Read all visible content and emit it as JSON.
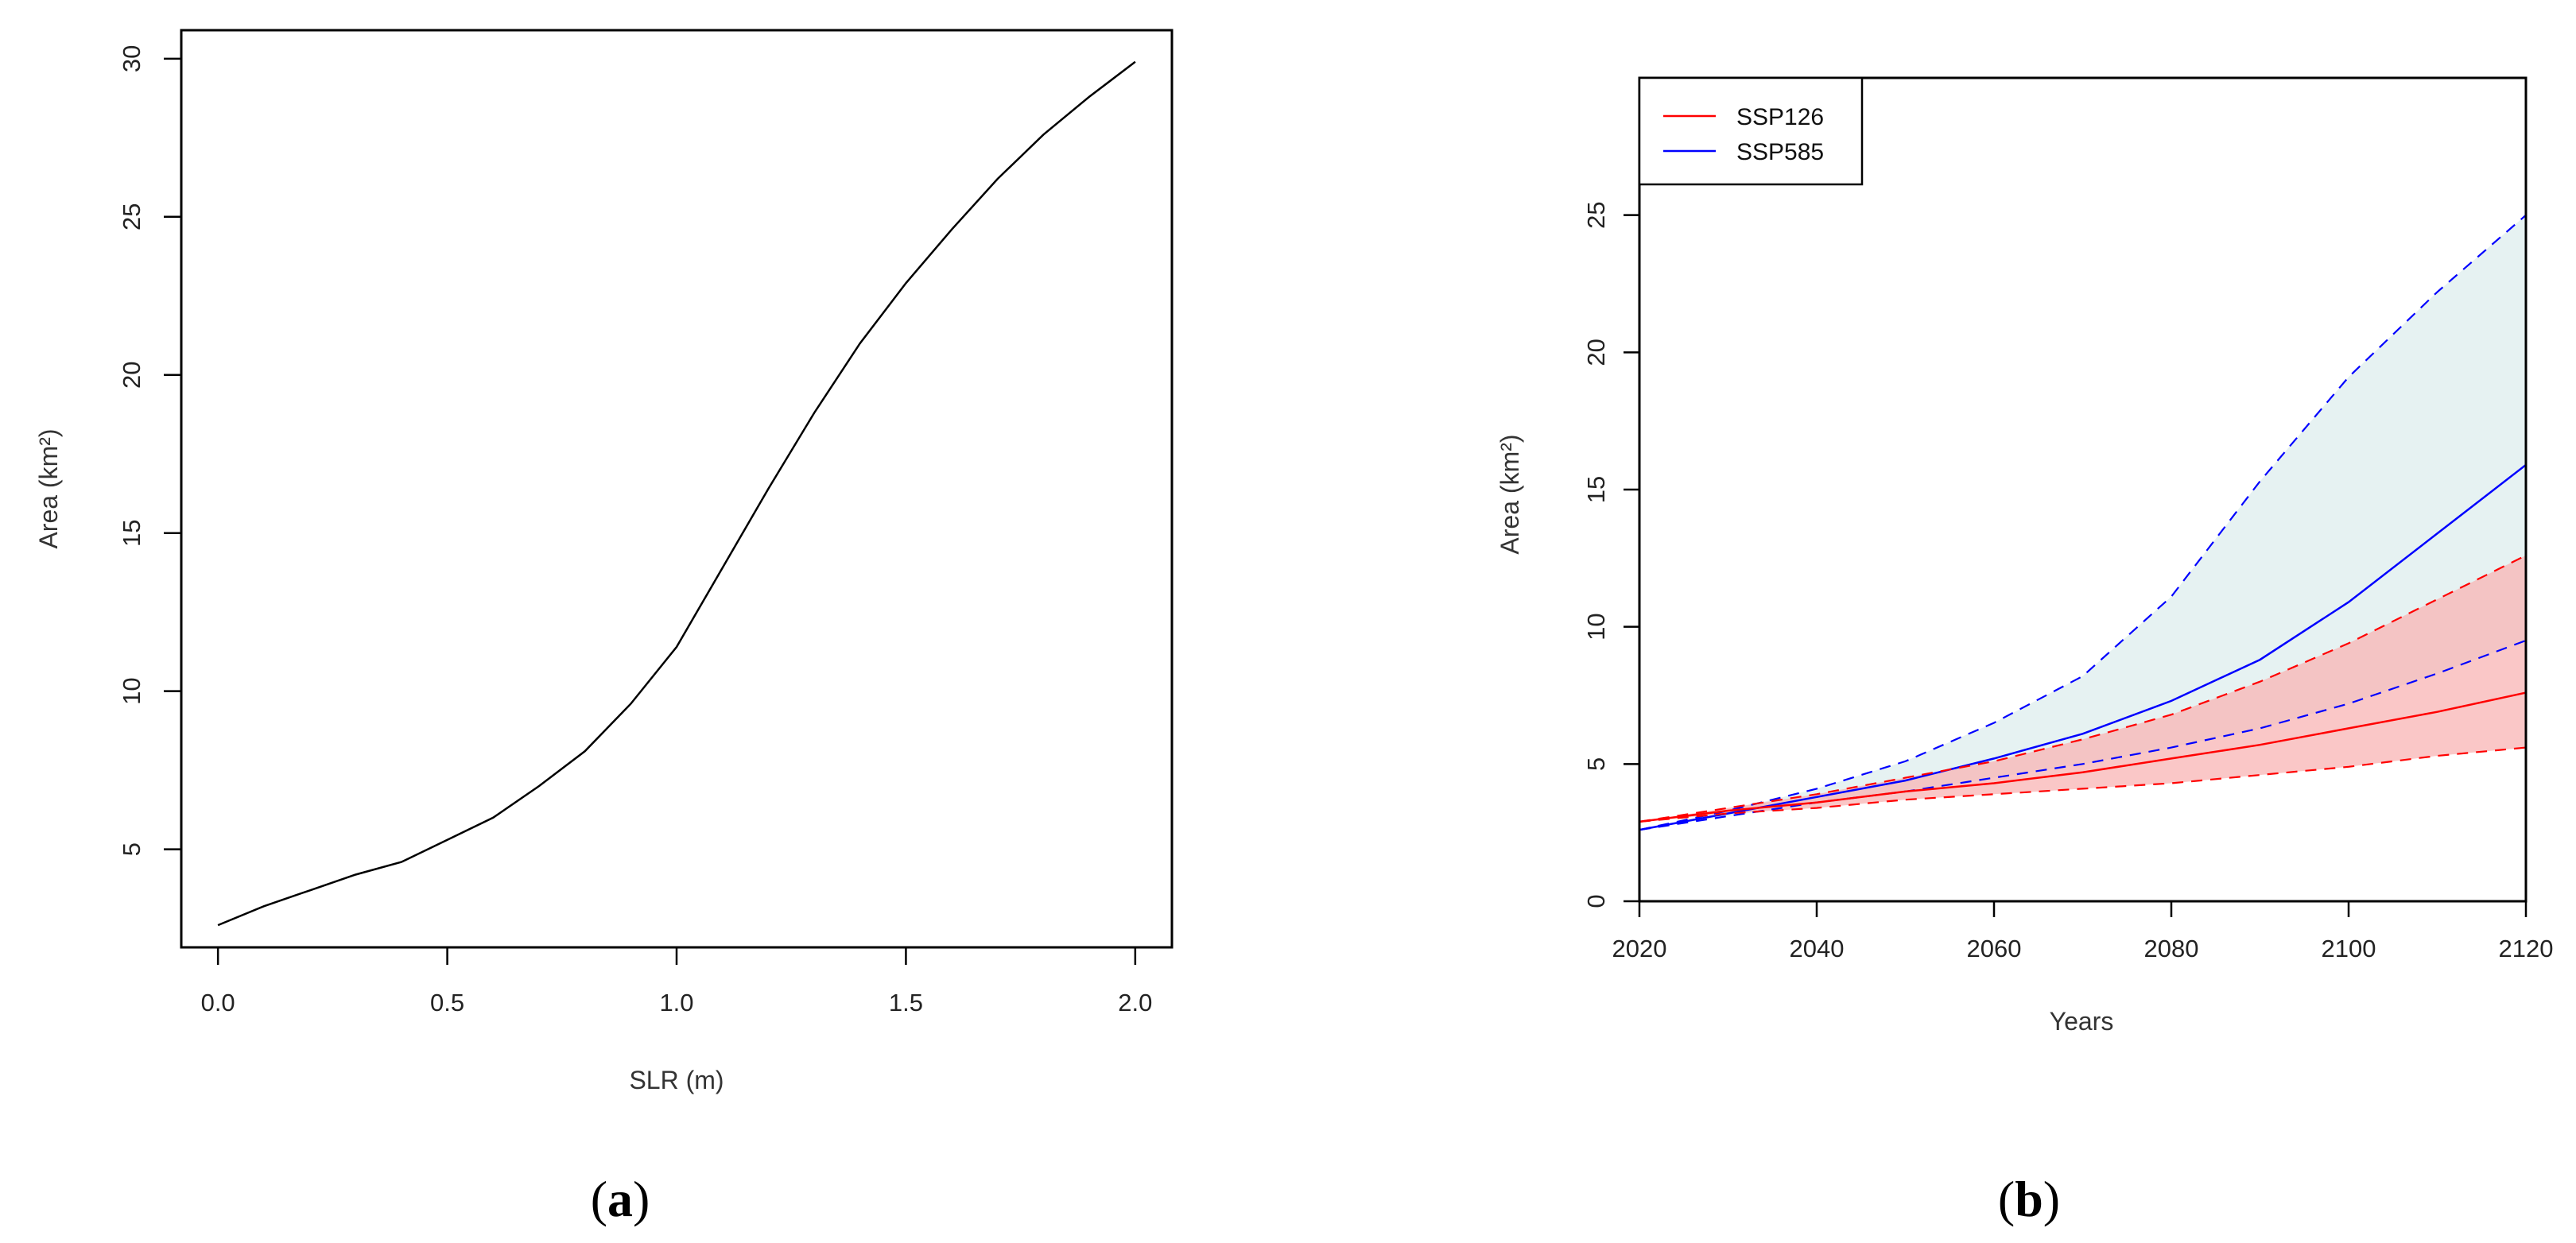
{
  "chart_data": [
    {
      "panel": "(a)",
      "caption": "a",
      "type": "line",
      "xlabel": "SLR (m)",
      "ylabel": "Area (km²)",
      "xlim": [
        -0.08,
        2.08
      ],
      "ylim": [
        1.9,
        30.9
      ],
      "xticks": [
        0.0,
        0.5,
        1.0,
        1.5,
        2.0
      ],
      "xtick_labels": [
        "0.0",
        "0.5",
        "1.0",
        "1.5",
        "2.0"
      ],
      "yticks": [
        5,
        10,
        15,
        20,
        25,
        30
      ],
      "ytick_labels": [
        "5",
        "10",
        "15",
        "20",
        "25",
        "30"
      ],
      "grid": false,
      "series": [
        {
          "color": "#000000",
          "x": [
            0.0,
            0.1,
            0.2,
            0.3,
            0.4,
            0.5,
            0.6,
            0.7,
            0.8,
            0.9,
            1.0,
            1.1,
            1.2,
            1.3,
            1.4,
            1.5,
            1.6,
            1.7,
            1.8,
            1.9,
            2.0
          ],
          "y": [
            2.6,
            3.2,
            3.7,
            4.2,
            4.6,
            5.3,
            6.0,
            7.0,
            8.1,
            9.6,
            11.4,
            13.9,
            16.4,
            18.8,
            21.0,
            22.9,
            24.6,
            26.2,
            27.6,
            28.8,
            29.9
          ]
        }
      ]
    },
    {
      "panel": "(b)",
      "caption": "b",
      "type": "line",
      "xlabel": "Years",
      "ylabel": "Area (km²)",
      "xlim": [
        2020,
        2120
      ],
      "ylim": [
        0,
        30
      ],
      "xticks": [
        2020,
        2040,
        2060,
        2080,
        2100,
        2120
      ],
      "xtick_labels": [
        "2020",
        "2040",
        "2060",
        "2080",
        "2100",
        "2120"
      ],
      "yticks": [
        0,
        5,
        10,
        15,
        20,
        25
      ],
      "ytick_labels": [
        "0",
        "5",
        "10",
        "15",
        "20",
        "25"
      ],
      "grid": false,
      "legend": {
        "position": "top-left",
        "entries": [
          {
            "label": "SSP126",
            "color": "#ff0000"
          },
          {
            "label": "SSP585",
            "color": "#0000ff"
          }
        ]
      },
      "series": [
        {
          "name": "SSP126",
          "color": "#ff0000",
          "band_fill": "#f8b4b4",
          "x": [
            2020,
            2030,
            2040,
            2050,
            2060,
            2070,
            2080,
            2090,
            2100,
            2110,
            2120
          ],
          "median": [
            2.9,
            3.3,
            3.6,
            4.0,
            4.3,
            4.7,
            5.2,
            5.7,
            6.3,
            6.9,
            7.6
          ],
          "lower": [
            2.9,
            3.2,
            3.4,
            3.7,
            3.9,
            4.1,
            4.3,
            4.6,
            4.9,
            5.3,
            5.6
          ],
          "upper": [
            2.9,
            3.4,
            3.9,
            4.5,
            5.1,
            5.9,
            6.8,
            8.0,
            9.4,
            11.0,
            12.6
          ]
        },
        {
          "name": "SSP585",
          "color": "#0000ff",
          "band_fill": "#e6f2f2",
          "x": [
            2020,
            2030,
            2040,
            2050,
            2060,
            2070,
            2080,
            2090,
            2100,
            2110,
            2120
          ],
          "median": [
            2.6,
            3.2,
            3.8,
            4.4,
            5.2,
            6.1,
            7.3,
            8.8,
            10.9,
            13.4,
            15.9
          ],
          "lower": [
            2.6,
            3.1,
            3.6,
            4.0,
            4.5,
            5.0,
            5.6,
            6.3,
            7.2,
            8.3,
            9.5
          ],
          "upper": [
            2.6,
            3.3,
            4.1,
            5.1,
            6.5,
            8.2,
            11.1,
            15.3,
            19.1,
            22.2,
            25.0
          ]
        }
      ]
    }
  ]
}
